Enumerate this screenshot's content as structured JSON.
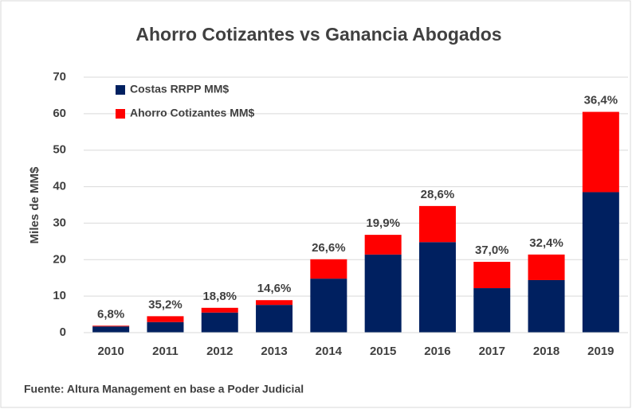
{
  "chart_data": {
    "type": "stacked_bar",
    "title": "Ahorro Cotizantes vs Ganancia Abogados",
    "y_label": "Miles de MM$",
    "source": "Fuente: Altura Management en base a Poder Judicial",
    "categories": [
      "2010",
      "2011",
      "2012",
      "2013",
      "2014",
      "2015",
      "2016",
      "2017",
      "2018",
      "2019"
    ],
    "series": [
      {
        "name": "Costas RRPP MM$",
        "color": "#002060",
        "values": [
          1.7,
          2.9,
          5.5,
          7.6,
          14.8,
          21.4,
          24.8,
          12.2,
          14.4,
          38.5
        ]
      },
      {
        "name": "Ahorro Cotizantes MM$",
        "color": "#ff0000",
        "values": [
          0.2,
          1.6,
          1.3,
          1.3,
          5.3,
          5.4,
          9.9,
          7.2,
          7.0,
          22.0
        ]
      }
    ],
    "bar_labels": [
      "6,8%",
      "35,2%",
      "18,8%",
      "14,6%",
      "26,6%",
      "19,9%",
      "28,6%",
      "37,0%",
      "32,4%",
      "36,4%"
    ],
    "ylim": [
      0,
      70
    ],
    "yticks": [
      0,
      10,
      20,
      30,
      40,
      50,
      60,
      70
    ],
    "grid": true,
    "legend": "top-left"
  }
}
